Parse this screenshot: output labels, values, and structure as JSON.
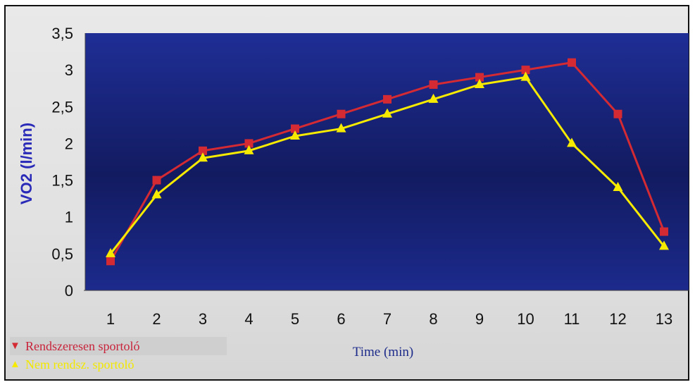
{
  "chart_data": {
    "type": "line",
    "title": "",
    "xlabel": "Time (min)",
    "ylabel": "VO2 (l/min)",
    "x": [
      1,
      2,
      3,
      4,
      5,
      6,
      7,
      8,
      9,
      10,
      11,
      12,
      13
    ],
    "ylim": [
      0,
      3.5
    ],
    "yticks": [
      "0",
      "0,5",
      "1",
      "1,5",
      "2",
      "2,5",
      "3",
      "3,5"
    ],
    "grid": false,
    "legend_position": "bottom-left",
    "series": [
      {
        "name": "Rendszeresen sportoló",
        "color": "#d42a33",
        "marker": "square",
        "legend_symbol": "▼",
        "values": [
          0.4,
          1.5,
          1.9,
          2.0,
          2.2,
          2.4,
          2.6,
          2.8,
          2.9,
          3.0,
          3.1,
          2.4,
          0.8
        ]
      },
      {
        "name": "Nem rendsz. sportoló",
        "color": "#f6ea00",
        "marker": "triangle",
        "legend_symbol": "▲",
        "values": [
          0.5,
          1.3,
          1.8,
          1.9,
          2.1,
          2.2,
          2.4,
          2.6,
          2.8,
          2.9,
          2.0,
          1.4,
          0.6
        ]
      }
    ]
  }
}
